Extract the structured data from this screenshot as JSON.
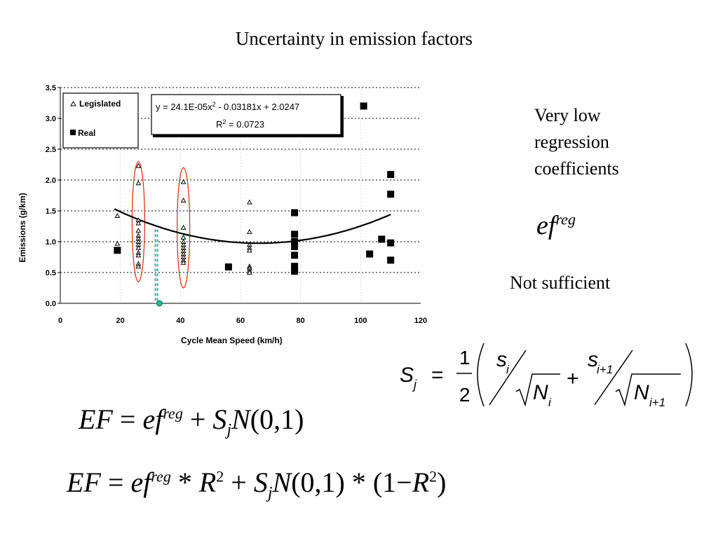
{
  "slide": {
    "title": "Uncertainty in emission factors",
    "note_lines": [
      "Very low",
      "regression",
      "coefficients"
    ],
    "not_sufficient": "Not sufficient"
  },
  "formulas": {
    "ef_reg": {
      "base": "ef",
      "sup": "reg"
    },
    "sj": {
      "lhs": "S",
      "lhs_sub": "j",
      "eq": "=",
      "num": "1",
      "den": "2",
      "s1": "s",
      "s1_sub": "i",
      "n1": "N",
      "n1_sub": "i",
      "plus": "+",
      "s2": "s",
      "s2_sub": "i+1",
      "n2": "N",
      "n2_sub": "i+1"
    },
    "eq1": {
      "EF": "EF",
      "eq": "=",
      "ef": "ef",
      "reg": "reg",
      "plus": "+",
      "S": "S",
      "j": "j",
      "N": "N",
      "args": "(0,1)"
    },
    "eq2": {
      "EF": "EF",
      "eq": "=",
      "ef": "ef",
      "reg": "reg",
      "star": "*",
      "R": "R",
      "two": "2",
      "plus": "+",
      "S": "S",
      "j": "j",
      "N": "N",
      "args": "(0,1)",
      "one_minus": "(1−",
      "close": ")"
    }
  },
  "chart_data": {
    "type": "scatter",
    "xlabel": "Cycle Mean Speed (km/h)",
    "ylabel": "Emissions (g/km)",
    "xlim": [
      0,
      120
    ],
    "ylim": [
      0,
      3.5
    ],
    "xticks": [
      "0",
      "20",
      "40",
      "60",
      "80",
      "100",
      "120"
    ],
    "yticks": [
      "0.0",
      "0.5",
      "1.0",
      "1.5",
      "2.0",
      "2.5",
      "3.0",
      "3.5"
    ],
    "grid": "dotted horizontal",
    "legend_position": "top-left",
    "series": [
      {
        "name": "Legislated",
        "marker": "open-triangle",
        "points": [
          [
            19,
            1.42
          ],
          [
            19,
            0.97
          ],
          [
            26,
            2.23
          ],
          [
            26,
            1.95
          ],
          [
            26,
            1.35
          ],
          [
            26,
            1.3
          ],
          [
            26,
            1.18
          ],
          [
            26,
            1.1
          ],
          [
            26,
            1.05
          ],
          [
            26,
            1.0
          ],
          [
            26,
            0.95
          ],
          [
            26,
            0.9
          ],
          [
            26,
            0.82
          ],
          [
            26,
            0.78
          ],
          [
            26,
            0.64
          ],
          [
            26,
            0.6
          ],
          [
            41,
            1.97
          ],
          [
            41,
            1.67
          ],
          [
            41,
            1.23
          ],
          [
            41,
            1.07
          ],
          [
            41,
            1.0
          ],
          [
            41,
            0.95
          ],
          [
            41,
            0.9
          ],
          [
            41,
            0.85
          ],
          [
            41,
            0.8
          ],
          [
            41,
            0.75
          ],
          [
            41,
            0.7
          ],
          [
            41,
            0.66
          ],
          [
            63,
            1.64
          ],
          [
            63,
            1.16
          ],
          [
            63,
            0.95
          ],
          [
            63,
            0.9
          ],
          [
            63,
            0.86
          ],
          [
            63,
            0.6
          ],
          [
            63,
            0.57
          ],
          [
            63,
            0.53
          ],
          [
            63,
            0.5
          ]
        ]
      },
      {
        "name": "Real",
        "marker": "filled-square",
        "points": [
          [
            19,
            0.86
          ],
          [
            56,
            0.59
          ],
          [
            78,
            1.47
          ],
          [
            78,
            1.12
          ],
          [
            78,
            1.0
          ],
          [
            78,
            0.92
          ],
          [
            78,
            0.78
          ],
          [
            78,
            0.6
          ],
          [
            78,
            0.52
          ],
          [
            101,
            3.2
          ],
          [
            103,
            0.8
          ],
          [
            107,
            1.04
          ],
          [
            110,
            2.09
          ],
          [
            110,
            1.77
          ],
          [
            110,
            0.98
          ],
          [
            110,
            0.7
          ]
        ]
      }
    ],
    "fit": {
      "equation": "y = 24.1E-05x² - 0.03181x + 2.0247",
      "equation_parts": {
        "pre": "y = 24.1E-05x",
        "sup": "2",
        "post": " - 0.03181x + 2.0247"
      },
      "r2_label": "R",
      "r2_sup": "2",
      "r2_value": " = 0.0723",
      "coefficients": [
        0.000241,
        -0.03181,
        2.0247
      ],
      "r2": 0.0723,
      "x_range": [
        18,
        110
      ]
    },
    "annotations": [
      {
        "type": "ellipse",
        "color": "#d43a1a",
        "x": 26,
        "y_range": [
          0.35,
          2.3
        ]
      },
      {
        "type": "ellipse",
        "color": "#d43a1a",
        "x": 41,
        "y_range": [
          0.25,
          2.2
        ]
      },
      {
        "type": "dashed-vertical",
        "color": "#1abc9c",
        "x": 32,
        "y_range": [
          0,
          1.2
        ]
      },
      {
        "type": "dot",
        "color": "#1abc9c",
        "x": 33,
        "y": 0
      }
    ],
    "colors": {
      "markers": "#000000",
      "ellipse": "#d43a1a",
      "teal": "#1abc9c"
    }
  }
}
